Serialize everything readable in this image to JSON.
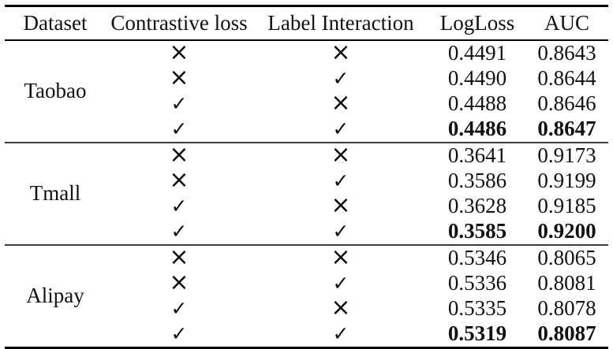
{
  "table": {
    "headers": {
      "dataset": "Dataset",
      "contrastive": "Contrastive loss",
      "label_interaction": "Label Interaction",
      "logloss": "LogLoss",
      "auc": "AUC"
    },
    "marks": {
      "check": "✓",
      "cross": "×"
    },
    "groups": [
      {
        "dataset": "Taobao",
        "rows": [
          {
            "contrastive": "×",
            "label_interaction": "×",
            "logloss": "0.4491",
            "auc": "0.8643"
          },
          {
            "contrastive": "×",
            "label_interaction": "✓",
            "logloss": "0.4490",
            "auc": "0.8644"
          },
          {
            "contrastive": "✓",
            "label_interaction": "×",
            "logloss": "0.4488",
            "auc": "0.8646"
          },
          {
            "contrastive": "✓",
            "label_interaction": "✓",
            "logloss": "0.4486",
            "auc": "0.8647"
          }
        ]
      },
      {
        "dataset": "Tmall",
        "rows": [
          {
            "contrastive": "×",
            "label_interaction": "×",
            "logloss": "0.3641",
            "auc": "0.9173"
          },
          {
            "contrastive": "×",
            "label_interaction": "✓",
            "logloss": "0.3586",
            "auc": "0.9199"
          },
          {
            "contrastive": "✓",
            "label_interaction": "×",
            "logloss": "0.3628",
            "auc": "0.9185"
          },
          {
            "contrastive": "✓",
            "label_interaction": "✓",
            "logloss": "0.3585",
            "auc": "0.9200"
          }
        ]
      },
      {
        "dataset": "Alipay",
        "rows": [
          {
            "contrastive": "×",
            "label_interaction": "×",
            "logloss": "0.5346",
            "auc": "0.8065"
          },
          {
            "contrastive": "×",
            "label_interaction": "✓",
            "logloss": "0.5336",
            "auc": "0.8081"
          },
          {
            "contrastive": "✓",
            "label_interaction": "×",
            "logloss": "0.5335",
            "auc": "0.8078"
          },
          {
            "contrastive": "✓",
            "label_interaction": "✓",
            "logloss": "0.5319",
            "auc": "0.8087"
          }
        ]
      }
    ],
    "bold_rule": "best (last) row of each group has bold LogLoss and AUC"
  },
  "colors": {
    "text": "#111111",
    "rule_heavy": "#000000",
    "rule_light": "#3d3d3d",
    "background": "#ffffff"
  }
}
